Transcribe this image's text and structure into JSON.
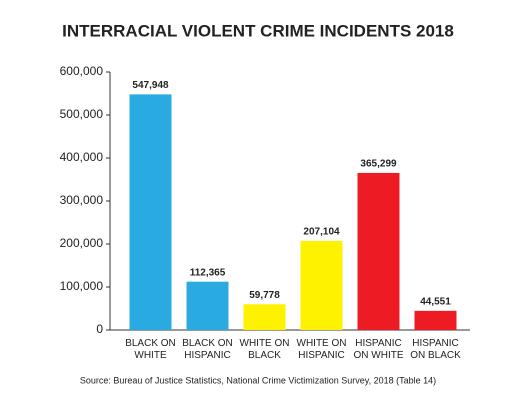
{
  "chart_data": {
    "type": "bar",
    "title": "INTERRACIAL VIOLENT CRIME INCIDENTS 2018",
    "categories": [
      "BLACK ON WHITE",
      "BLACK ON HISPANIC",
      "WHITE ON BLACK",
      "WHITE ON HISPANIC",
      "HISPANIC ON WHITE",
      "HISPANIC ON BLACK"
    ],
    "values": [
      547948,
      112365,
      59778,
      207104,
      365299,
      44551
    ],
    "value_labels": [
      "547,948",
      "112,365",
      "59,778",
      "207,104",
      "365,299",
      "44,551"
    ],
    "colors": [
      "#29abe2",
      "#29abe2",
      "#fff200",
      "#fff200",
      "#ed1c24",
      "#ed1c24"
    ],
    "ylim": [
      0,
      600000
    ],
    "yticks": [
      0,
      {
        "value": 100000,
        "label": "100,000"
      },
      {
        "value": 200000,
        "label": "200,000"
      },
      {
        "value": 300000,
        "label": "300,000"
      },
      {
        "value": 400000,
        "label": "400,000"
      },
      {
        "value": 500000,
        "label": "500,000"
      },
      {
        "value": 600000,
        "label": "600,000"
      }
    ],
    "source": "Source: Bureau of Justice Statistics, National Crime Victimization Survey, 2018 (Table 14)"
  }
}
